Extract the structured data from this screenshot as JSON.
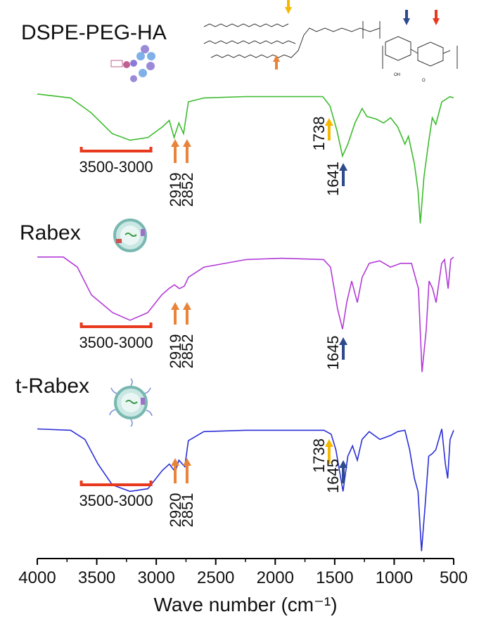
{
  "chart_data": {
    "type": "line",
    "xlabel": "Wave number (cm⁻¹)",
    "xlim": [
      4000,
      500
    ],
    "xticks": [
      4000,
      3500,
      3000,
      2500,
      2000,
      1500,
      1000,
      500
    ],
    "ylim": [
      0,
      100
    ],
    "series": [
      {
        "name": "DSPE-PEG-HA",
        "color": "#3dbb2e",
        "x": [
          4000,
          3720,
          3550,
          3370,
          3220,
          3070,
          2950,
          2890,
          2850,
          2810,
          2770,
          2730,
          2600,
          2250,
          1950,
          1600,
          1540,
          1480,
          1435,
          1390,
          1330,
          1270,
          1230,
          1150,
          1090,
          1030,
          970,
          910,
          880,
          830,
          800,
          780,
          750,
          710,
          680,
          650,
          600,
          530,
          500
        ],
        "values": [
          98,
          95,
          84,
          68,
          63,
          65,
          73,
          78,
          65,
          76,
          68,
          92,
          95,
          96,
          96,
          96,
          89,
          70,
          51,
          60,
          76,
          87,
          81,
          79,
          76,
          80,
          73,
          60,
          66,
          45,
          25,
          0,
          35,
          62,
          80,
          75,
          92,
          96,
          95
        ],
        "annotations": [
          {
            "type": "range",
            "label": "3500-3000",
            "x": [
              3630,
              3045
            ],
            "color": "#e8391e"
          },
          {
            "type": "arrow",
            "label": "2919",
            "x": 2841,
            "color": "#e8843a"
          },
          {
            "type": "arrow",
            "label": "2852",
            "x": 2741,
            "color": "#e8843a"
          },
          {
            "type": "arrow",
            "label": "1738",
            "x": 1547,
            "color": "#f5b800"
          },
          {
            "type": "arrow",
            "label": "1641",
            "x": 1428,
            "color": "#2c4a8c"
          }
        ]
      },
      {
        "name": "Rabex",
        "color": "#b23ad6",
        "x": [
          4000,
          3781,
          3663,
          3545,
          3367,
          3220,
          3072,
          2954,
          2894,
          2847,
          2806,
          2764,
          2729,
          2599,
          2244,
          1948,
          1594,
          1535,
          1476,
          1434,
          1399,
          1357,
          1310,
          1269,
          1210,
          1121,
          1032,
          944,
          855,
          796,
          766,
          731,
          707,
          677,
          648,
          601,
          577,
          547,
          524,
          500
        ],
        "values": [
          94,
          94,
          86,
          64,
          50,
          44,
          50,
          64,
          69,
          72,
          69,
          71,
          78,
          86,
          92,
          93,
          92,
          86,
          53,
          37,
          58,
          75,
          58,
          78,
          89,
          91,
          86,
          89,
          89,
          69,
          3,
          36,
          75,
          69,
          58,
          89,
          92,
          69,
          92,
          94
        ],
        "annotations": [
          {
            "type": "range",
            "label": "3500-3000",
            "x": [
              3630,
              3045
            ],
            "color": "#e8391e"
          },
          {
            "type": "arrow",
            "label": "2919",
            "x": 2841,
            "color": "#e8843a"
          },
          {
            "type": "arrow",
            "label": "2852",
            "x": 2741,
            "color": "#e8843a"
          },
          {
            "type": "arrow",
            "label": "1645",
            "x": 1428,
            "color": "#2c4a8c"
          }
        ]
      },
      {
        "name": "t-Rabex",
        "color": "#2b2fd6",
        "x": [
          4000,
          3720,
          3600,
          3490,
          3370,
          3220,
          3070,
          2950,
          2890,
          2840,
          2810,
          2760,
          2730,
          2600,
          2250,
          1950,
          1590,
          1530,
          1490,
          1430,
          1390,
          1350,
          1310,
          1270,
          1210,
          1120,
          1030,
          970,
          910,
          870,
          830,
          800,
          770,
          740,
          710,
          680,
          650,
          600,
          570,
          550,
          530,
          500
        ],
        "values": [
          97,
          96,
          89,
          70,
          54,
          49,
          51,
          65,
          70,
          64,
          73,
          68,
          88,
          95,
          96,
          96,
          96,
          93,
          81,
          49,
          76,
          84,
          73,
          89,
          95,
          89,
          92,
          95,
          96,
          81,
          59,
          49,
          3,
          38,
          76,
          78,
          81,
          97,
          70,
          59,
          89,
          96
        ],
        "annotations": [
          {
            "type": "range",
            "label": "3500-3000",
            "x": [
              3630,
              3045
            ],
            "color": "#e8391e"
          },
          {
            "type": "arrow",
            "label": "2920",
            "x": 2841,
            "color": "#e8843a"
          },
          {
            "type": "arrow",
            "label": "2851",
            "x": 2741,
            "color": "#e8843a"
          },
          {
            "type": "arrow",
            "label": "1738",
            "x": 1547,
            "color": "#f5b800"
          },
          {
            "type": "arrow",
            "label": "1645",
            "x": 1428,
            "color": "#2c4a8c"
          }
        ]
      }
    ]
  }
}
